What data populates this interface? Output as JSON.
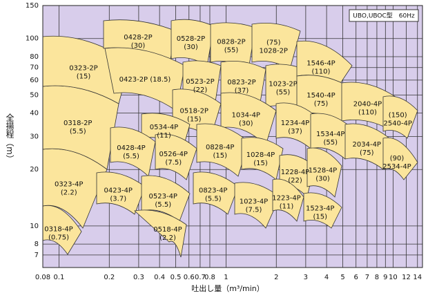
{
  "chart_data": {
    "type": "selection",
    "annotation": "UBO,UBOC型　60Hz",
    "x_label": "吐出し量（m³/min）",
    "y_label": "全揚程（m）",
    "log_x": true,
    "log_y": true,
    "grid": true,
    "xlim": [
      0.08,
      15
    ],
    "ylim": [
      6,
      150
    ],
    "xticks": [
      0.08,
      0.1,
      0.2,
      0.3,
      0.4,
      0.5,
      0.6,
      0.7,
      0.8,
      1,
      2,
      3,
      4,
      5,
      6,
      7,
      8,
      9,
      10,
      12,
      14
    ],
    "yticks": [
      7,
      8,
      10,
      20,
      30,
      40,
      50,
      60,
      70,
      80,
      100,
      150
    ],
    "region_color": "#fbe59c",
    "regions": [
      {
        "label_lines": [
          "0318-4P",
          "(0.75)"
        ]
      },
      {
        "label_lines": [
          "0323-4P",
          "(2.2)"
        ]
      },
      {
        "label_lines": [
          "0318-2P",
          "(5.5)"
        ]
      },
      {
        "label_lines": [
          "0323-2P",
          "(15)"
        ]
      },
      {
        "label_lines": [
          "0428-2P",
          "(30)"
        ]
      },
      {
        "label_lines": [
          "0423-2P  (18.5)"
        ]
      },
      {
        "label_lines": [
          "0528-2P",
          "(30)"
        ]
      },
      {
        "label_lines": [
          "0828-2P",
          "(55)"
        ]
      },
      {
        "label_lines": [
          "(75)",
          "1028-2P"
        ]
      },
      {
        "label_lines": [
          "0523-2P",
          "(22)"
        ]
      },
      {
        "label_lines": [
          "0823-2P",
          "(37)"
        ]
      },
      {
        "label_lines": [
          "1023-2P",
          "(55)"
        ]
      },
      {
        "label_lines": [
          "1546-4P",
          "(110)"
        ]
      },
      {
        "label_lines": [
          "1540-4P",
          "(75)"
        ]
      },
      {
        "label_lines": [
          "2040-4P",
          "(110)"
        ]
      },
      {
        "label_lines": [
          "(150)",
          "2540-4P"
        ]
      },
      {
        "label_lines": [
          "0518-2P",
          "(15)"
        ]
      },
      {
        "label_lines": [
          "1034-4P",
          "(30)"
        ]
      },
      {
        "label_lines": [
          "1234-4P",
          "(37)"
        ]
      },
      {
        "label_lines": [
          "1534-4P",
          "(55)"
        ]
      },
      {
        "label_lines": [
          "2034-4P",
          "(75)"
        ]
      },
      {
        "label_lines": [
          "(90)",
          "2534-4P"
        ]
      },
      {
        "label_lines": [
          "0534-4P",
          "(11)"
        ]
      },
      {
        "label_lines": [
          "0428-4P",
          "(5.5)"
        ]
      },
      {
        "label_lines": [
          "0526-4P",
          "(7.5)"
        ]
      },
      {
        "label_lines": [
          "0828-4P",
          "(15)"
        ]
      },
      {
        "label_lines": [
          "1028-4P",
          "(15)"
        ]
      },
      {
        "label_lines": [
          "1228-4P",
          "(22)"
        ]
      },
      {
        "label_lines": [
          "1528-4P",
          "(30)"
        ]
      },
      {
        "label_lines": [
          "0423-4P",
          "(3.7)"
        ]
      },
      {
        "label_lines": [
          "0523-4P",
          "(5.5)"
        ]
      },
      {
        "label_lines": [
          "0823-4P",
          "(5.5)"
        ]
      },
      {
        "label_lines": [
          "1023-4P",
          "(7.5)"
        ]
      },
      {
        "label_lines": [
          "1223-4P",
          "(11)"
        ]
      },
      {
        "label_lines": [
          "1523-4P",
          "(15)"
        ]
      },
      {
        "label_lines": [
          "0518-4P",
          "(2.2)"
        ]
      }
    ]
  }
}
